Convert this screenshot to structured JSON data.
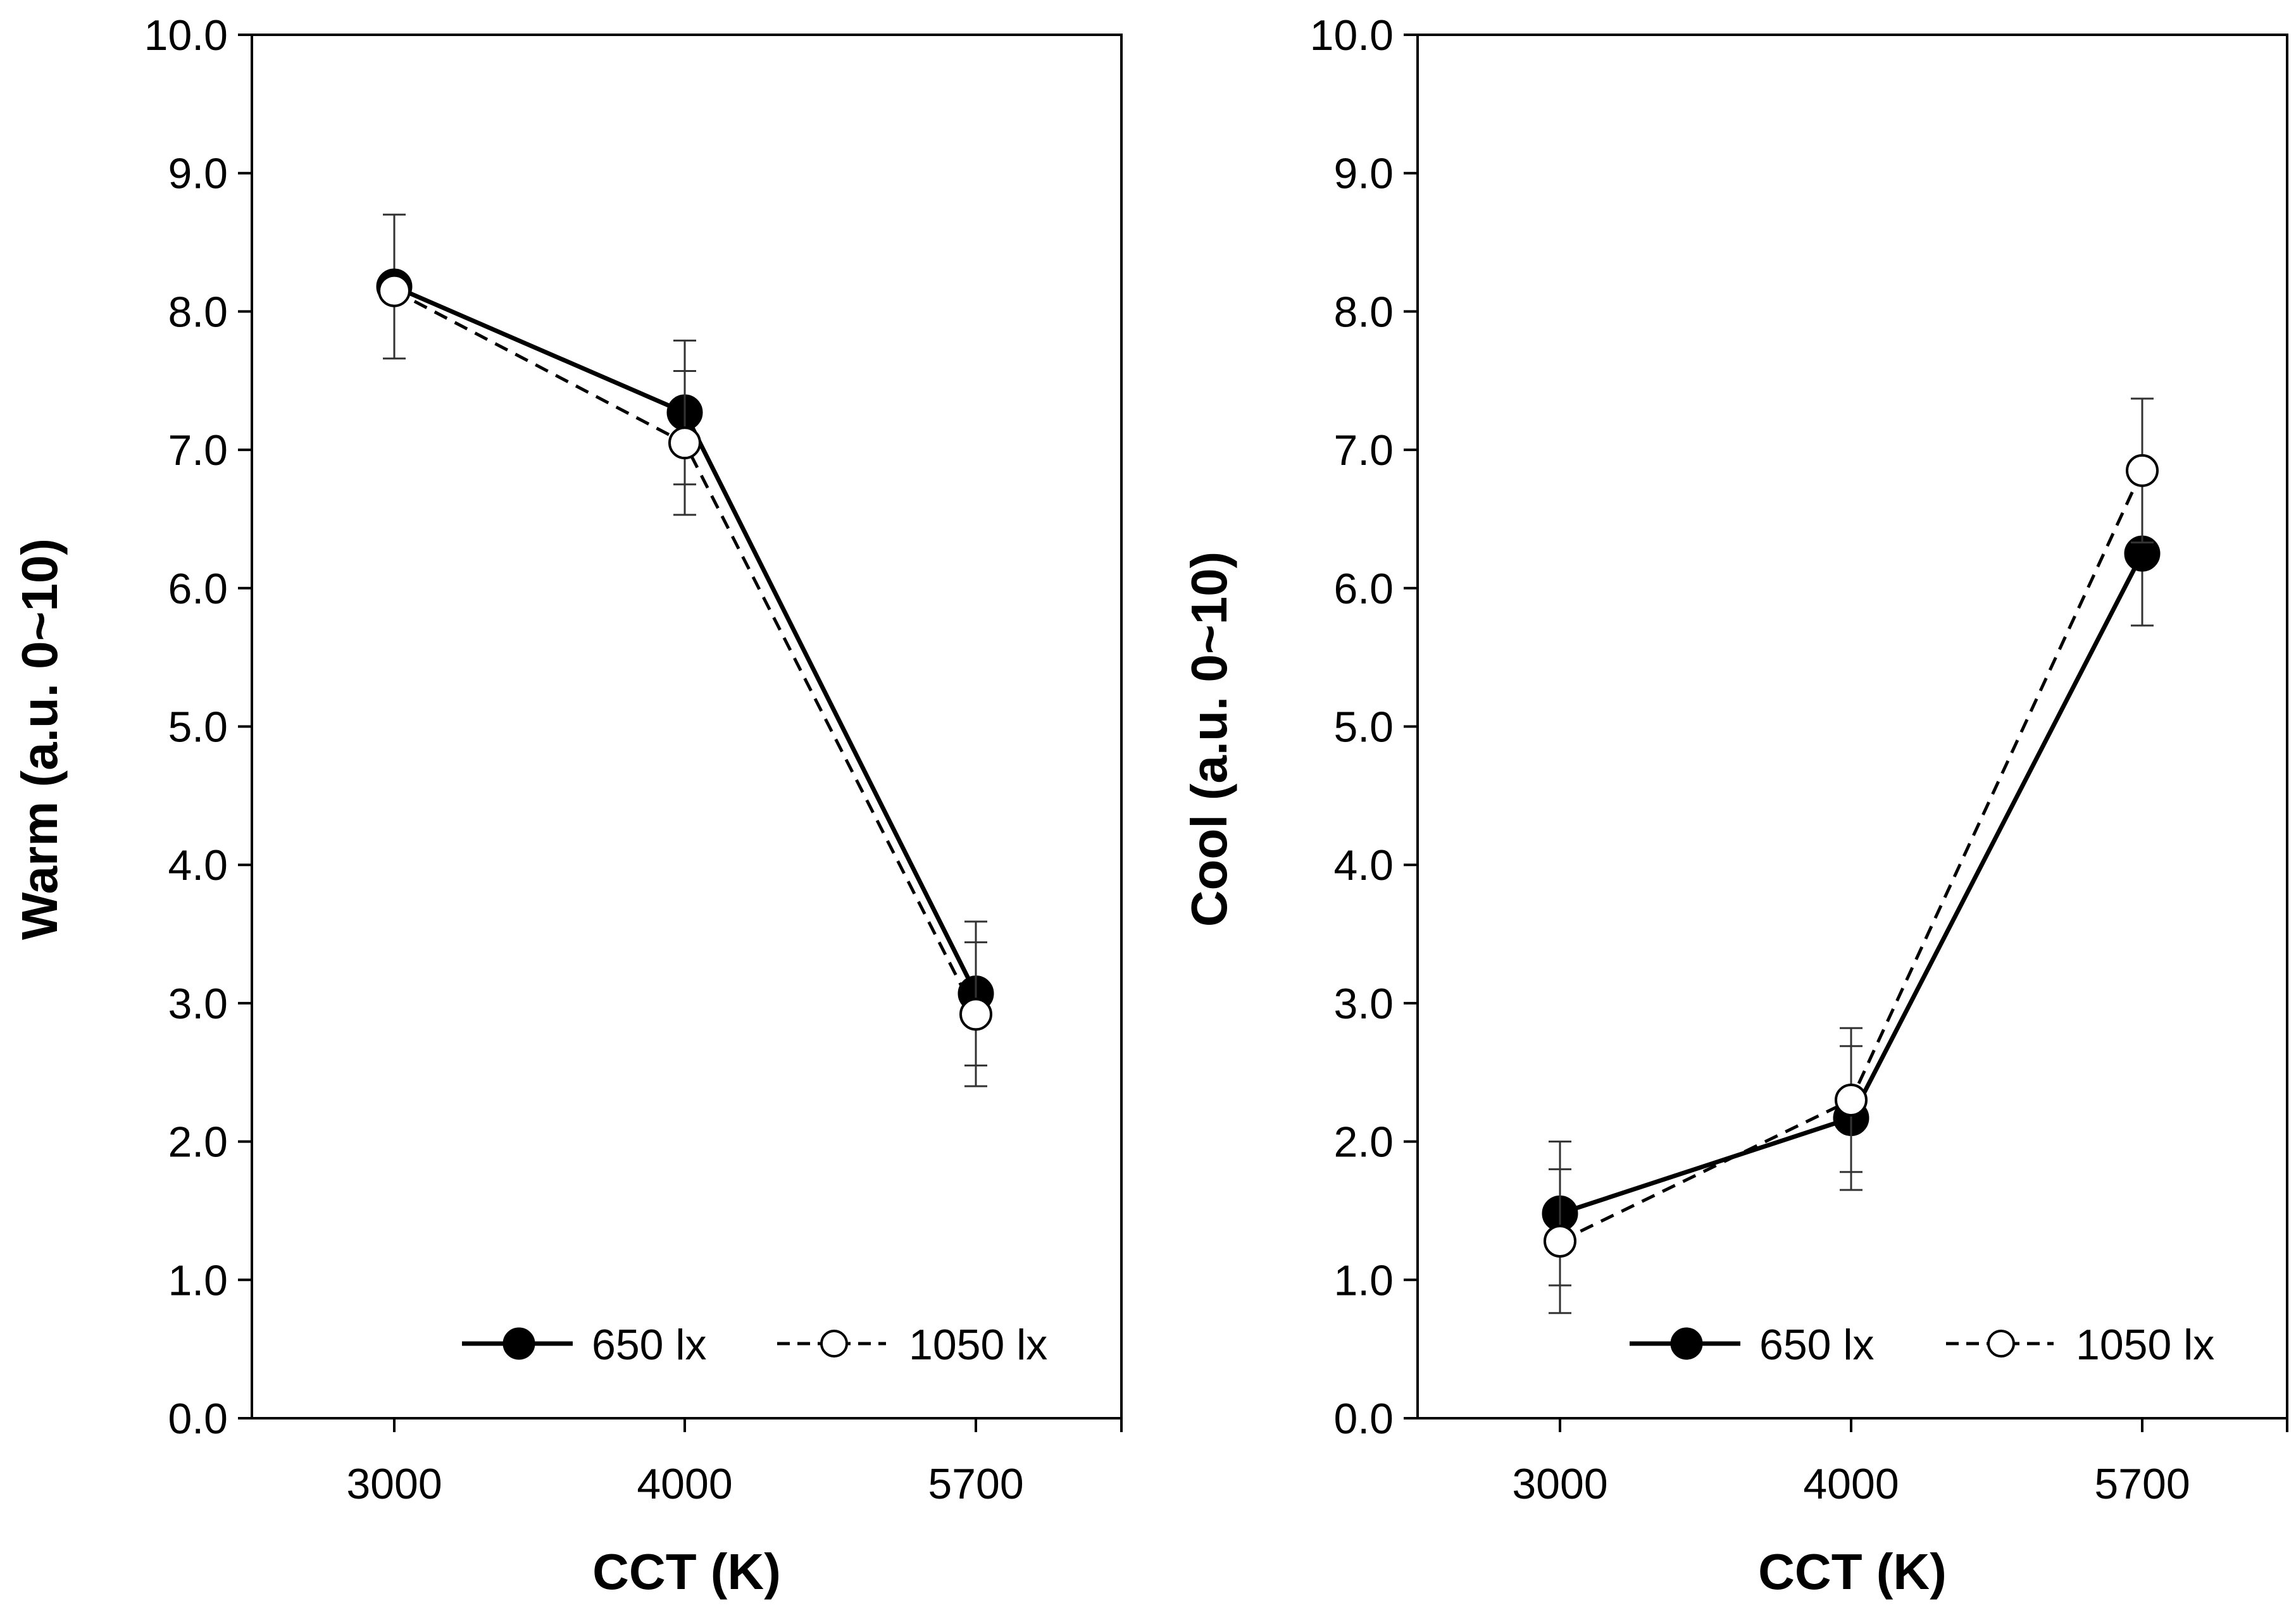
{
  "chart_data": [
    {
      "type": "line",
      "xlabel": "CCT (K)",
      "ylabel": "Warm (a.u. 0~10)",
      "categories": [
        "3000",
        "4000",
        "5700"
      ],
      "ylim": [
        0,
        10
      ],
      "yticks": [
        "0.0",
        "1.0",
        "2.0",
        "3.0",
        "4.0",
        "5.0",
        "6.0",
        "7.0",
        "8.0",
        "9.0",
        "10.0"
      ],
      "legend_position": "bottom-right",
      "series": [
        {
          "name": "650 lx",
          "style": "solid-filled",
          "values": [
            8.18,
            7.27,
            3.07
          ],
          "errors": [
            0.52,
            0.52,
            0.52
          ]
        },
        {
          "name": "1050 lx",
          "style": "dashed-open",
          "values": [
            8.15,
            7.05,
            2.92
          ],
          "errors": [
            0.0,
            0.52,
            0.52
          ]
        }
      ]
    },
    {
      "type": "line",
      "xlabel": "CCT (K)",
      "ylabel": "Cool (a.u. 0~10)",
      "categories": [
        "3000",
        "4000",
        "5700"
      ],
      "ylim": [
        0,
        10
      ],
      "yticks": [
        "0.0",
        "1.0",
        "2.0",
        "3.0",
        "4.0",
        "5.0",
        "6.0",
        "7.0",
        "8.0",
        "9.0",
        "10.0"
      ],
      "legend_position": "bottom-right",
      "series": [
        {
          "name": "650 lx",
          "style": "solid-filled",
          "values": [
            1.48,
            2.17,
            6.25
          ],
          "errors": [
            0.52,
            0.52,
            0.52
          ]
        },
        {
          "name": "1050 lx",
          "style": "dashed-open",
          "values": [
            1.28,
            2.3,
            6.85
          ],
          "errors": [
            0.52,
            0.52,
            0.52
          ]
        }
      ]
    }
  ]
}
